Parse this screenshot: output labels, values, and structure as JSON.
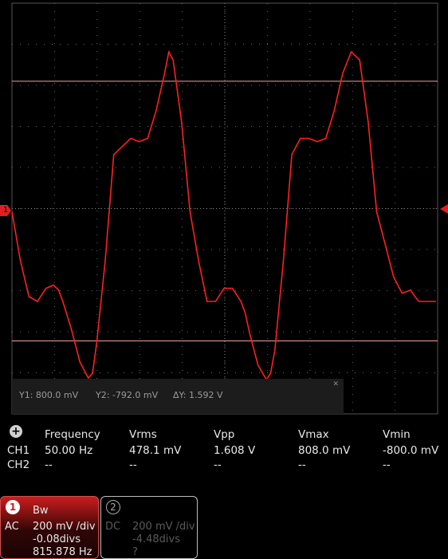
{
  "channel1_marker": "1",
  "cursors": {
    "y1": "Y1: 800.0 mV",
    "y2": "Y2: -792.0 mV",
    "dy": "ΔY: 1.592 V",
    "close_icon": "x-icon"
  },
  "measurements": {
    "add_icon": "plus-icon",
    "headers": [
      "Frequency",
      "Vrms",
      "Vpp",
      "Vmax",
      "Vmin"
    ],
    "rows": [
      {
        "label": "CH1",
        "values": [
          "50.00 Hz",
          "478.1 mV",
          "1.608 V",
          "808.0 mV",
          "-800.0 mV"
        ]
      },
      {
        "label": "CH2",
        "values": [
          "--",
          "--",
          "--",
          "--",
          "--"
        ]
      }
    ]
  },
  "channel1": {
    "badge": "1",
    "bw": "Bw",
    "coupling": "AC",
    "scale": "200 mV /div",
    "offset": "-0.08divs",
    "freq": "815.878 Hz"
  },
  "channel2": {
    "badge": "2",
    "coupling": "DC",
    "scale": "200 mV /div",
    "offset": "-4.48divs",
    "freq": "?"
  },
  "colors": {
    "trace": "#ff2020",
    "grid": "#6a6a6a",
    "cursor": "#f0a0a0",
    "background": "#000000"
  },
  "chart_data": {
    "type": "line",
    "title": "",
    "xlabel": "",
    "ylabel": "",
    "grid": true,
    "ylim": [
      -1.0,
      1.0
    ],
    "xlim": [
      0,
      50
    ],
    "x": [
      0,
      1,
      2,
      3,
      4,
      4.9,
      5.5,
      6,
      7,
      8,
      9,
      9.5,
      10,
      11,
      12,
      14,
      15,
      16,
      17,
      18,
      18.5,
      19,
      20,
      21,
      22,
      23,
      24,
      25,
      26,
      27,
      27.5,
      28,
      29,
      30,
      30.5,
      31,
      32,
      33,
      34,
      35,
      36,
      37,
      38,
      39,
      40,
      41,
      42,
      43,
      44,
      45,
      46,
      47,
      47.5,
      48,
      49,
      50
    ],
    "y": [
      0.0,
      -0.3,
      -0.52,
      -0.55,
      -0.47,
      -0.45,
      -0.48,
      -0.55,
      -0.72,
      -0.92,
      -1.02,
      -0.99,
      -0.8,
      -0.3,
      0.35,
      0.45,
      0.43,
      0.45,
      0.62,
      0.85,
      0.98,
      0.93,
      0.55,
      0.0,
      -0.3,
      -0.55,
      -0.55,
      -0.47,
      -0.47,
      -0.55,
      -0.62,
      -0.74,
      -0.94,
      -1.03,
      -0.99,
      -0.85,
      -0.3,
      0.35,
      0.45,
      0.45,
      0.43,
      0.45,
      0.62,
      0.85,
      0.98,
      0.93,
      0.55,
      0.0,
      -0.2,
      -0.4,
      -0.5,
      -0.48,
      -0.52,
      -0.55,
      -0.55,
      -0.55
    ],
    "cursor_levels_mV": [
      800.0,
      -792.0
    ]
  }
}
